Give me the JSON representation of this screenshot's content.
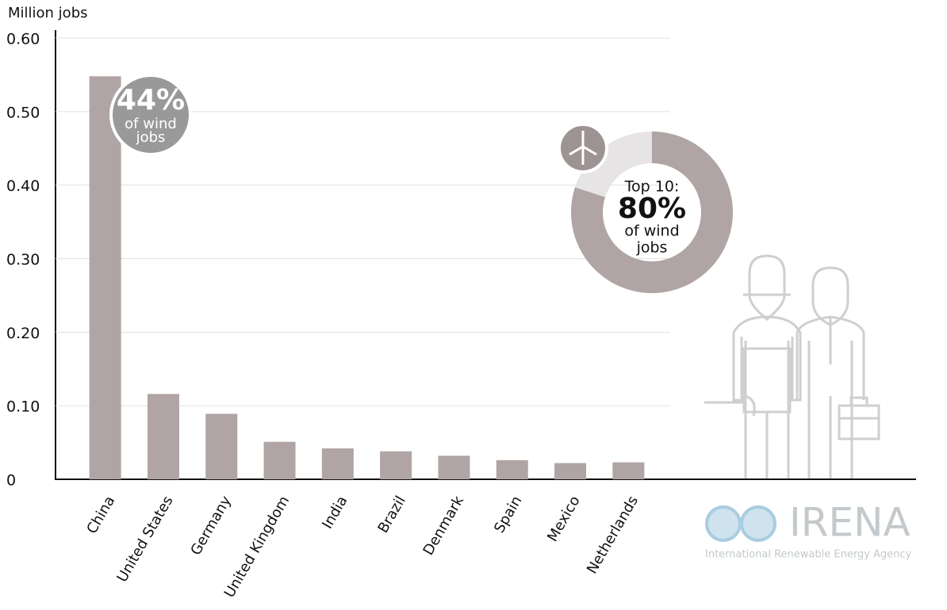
{
  "chart_data": {
    "type": "bar",
    "y_axis_label": "Million jobs",
    "categories": [
      "China",
      "United States",
      "Germany",
      "United Kingdom",
      "India",
      "Brazil",
      "Denmark",
      "Spain",
      "Mexico",
      "Netherlands"
    ],
    "values": [
      0.548,
      0.116,
      0.089,
      0.051,
      0.042,
      0.038,
      0.032,
      0.026,
      0.022,
      0.023
    ],
    "color": "#b0a4a4",
    "ylim": [
      0,
      0.6
    ],
    "yticks": [
      0,
      {
        "value": 0.1,
        "label": "0.10"
      },
      {
        "value": 0.2,
        "label": "0.20"
      },
      {
        "value": 0.3,
        "label": "0.30"
      },
      {
        "value": 0.4,
        "label": "0.40"
      },
      {
        "value": 0.5,
        "label": "0.50"
      },
      {
        "value": 0.6,
        "label": "0.60"
      }
    ],
    "grid": true,
    "china_callout": {
      "label": "44%",
      "line1": "of wind",
      "line2": "jobs"
    },
    "top10_callout": {
      "heading": "Top 10:",
      "value": 80,
      "label": "80%",
      "line1": "of wind",
      "line2": "jobs",
      "color": "#b0a4a4",
      "rest_color": "#e6e4e4"
    },
    "logo": {
      "name": "IRENA",
      "subtitle": "International Renewable Energy Agency"
    }
  }
}
